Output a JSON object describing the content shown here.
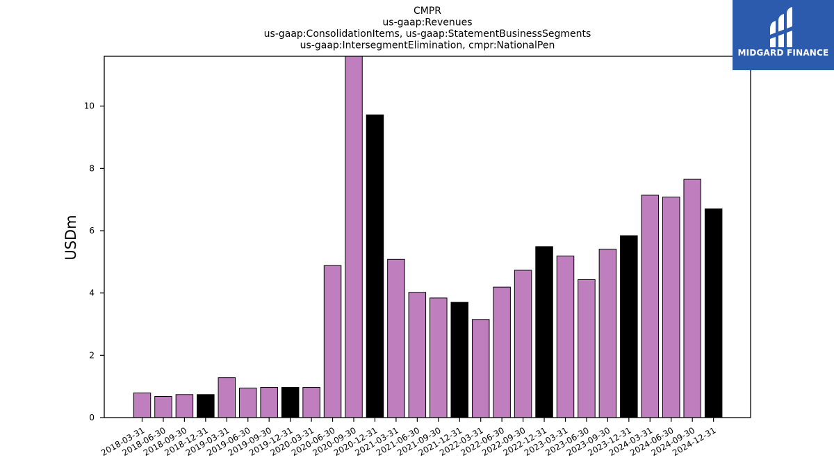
{
  "chart_data": {
    "type": "bar",
    "title_lines": [
      "CMPR",
      "us-gaap:Revenues",
      "us-gaap:ConsolidationItems, us-gaap:StatementBusinessSegments",
      "us-gaap:IntersegmentElimination, cmpr:NationalPen"
    ],
    "ylabel": "USDm",
    "xlabel": "",
    "ylim": [
      0,
      11.6
    ],
    "yticks": [
      0,
      2,
      4,
      6,
      8,
      10
    ],
    "categories": [
      "2018-03-31",
      "2018-06-30",
      "2018-09-30",
      "2018-12-31",
      "2019-03-31",
      "2019-06-30",
      "2019-09-30",
      "2019-12-31",
      "2020-03-31",
      "2020-06-30",
      "2020-09-30",
      "2020-12-31",
      "2021-03-31",
      "2021-06-30",
      "2021-09-30",
      "2021-12-31",
      "2022-03-31",
      "2022-06-30",
      "2022-09-30",
      "2022-12-31",
      "2023-03-31",
      "2023-06-30",
      "2023-09-30",
      "2023-12-31",
      "2024-03-31",
      "2024-06-30",
      "2024-09-30",
      "2024-12-31"
    ],
    "values": [
      0.79,
      0.68,
      0.74,
      0.74,
      1.28,
      0.95,
      0.97,
      0.97,
      0.97,
      4.88,
      11.62,
      9.72,
      5.08,
      4.02,
      3.84,
      3.7,
      3.15,
      4.19,
      4.73,
      5.49,
      5.19,
      4.43,
      5.41,
      5.84,
      7.14,
      7.08,
      7.65,
      6.7
    ],
    "colors": {
      "quarter": "#bf7fbf",
      "year_end": "#000000",
      "bar_edge": "#000000"
    },
    "grid": false,
    "legend": "none"
  },
  "logo": {
    "text": "MIDGARD FINANCE",
    "background": "#2c5aad"
  }
}
